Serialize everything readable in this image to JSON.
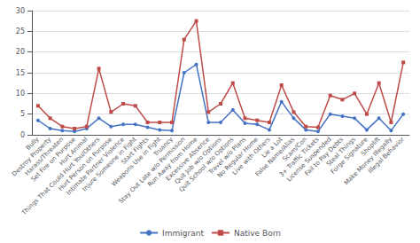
{
  "chart_data": {
    "type": "line",
    "categories": [
      "Bully",
      "Destroy Property",
      "Harass/Threaten",
      "Set Fire on Purpose",
      "Hurt Animal",
      "Things That Could Hurt You/Others",
      "Hurt Person on Purpose",
      "Intimate Partner Violence",
      "Injure Someone in Fight",
      "Start Fights",
      "Weapons Use in Fight",
      "Truancy",
      "Stay Out Late w/o Permission",
      "Run Away from Home",
      "Excessive Absence",
      "Quit Job w/o Options",
      "Quit School w/o Options",
      "Travel w/o Plans",
      "No Regular Home",
      "Live with Others",
      "Lie a Lot",
      "False Name/Alias",
      "Scam/Con",
      "3+ Traffic Tickets",
      "License Suspended",
      "Fail to Pay Debts",
      "Steal Things",
      "Forge Signature",
      "Shoplift",
      "Make Money Illegally",
      "Illegal Behavior"
    ],
    "series": [
      {
        "name": "Immigrant",
        "color": "#4472C4",
        "marker": "circle",
        "values": [
          3.5,
          1.5,
          1.0,
          0.8,
          1.5,
          4.0,
          2.0,
          2.5,
          2.5,
          1.8,
          1.2,
          1.0,
          15.0,
          17.0,
          3.0,
          3.0,
          6.0,
          2.8,
          2.5,
          1.2,
          8.0,
          4.0,
          1.2,
          0.8,
          5.0,
          4.5,
          4.0,
          1.2,
          4.0,
          1.0,
          5.0
        ]
      },
      {
        "name": "Native Born",
        "color": "#BE4B48",
        "marker": "square",
        "values": [
          7.0,
          4.0,
          2.0,
          1.5,
          2.0,
          16.0,
          5.5,
          7.5,
          7.0,
          3.0,
          3.0,
          3.0,
          23.0,
          27.5,
          5.5,
          7.5,
          12.5,
          4.0,
          3.5,
          3.0,
          12.0,
          5.5,
          2.0,
          1.8,
          9.5,
          8.5,
          10.0,
          5.0,
          12.5,
          3.0,
          17.5
        ]
      }
    ],
    "ylim": [
      0,
      30
    ],
    "yticks": [
      0,
      5,
      10,
      15,
      20,
      25,
      30
    ],
    "grid": true,
    "legend": "bottom"
  }
}
